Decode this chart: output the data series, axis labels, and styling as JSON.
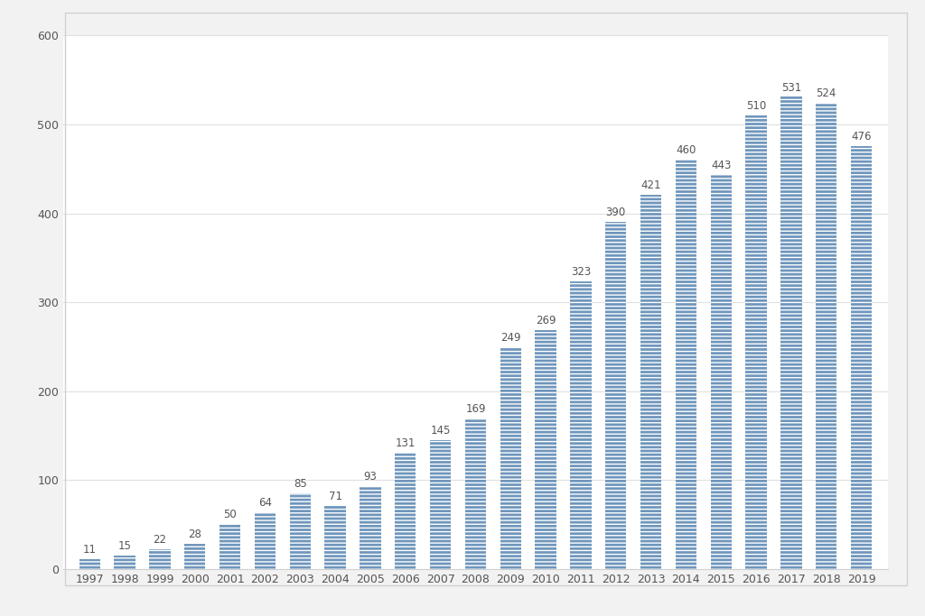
{
  "categories": [
    "1997",
    "1998",
    "1999",
    "2000",
    "2001",
    "2002",
    "2003",
    "2004",
    "2005",
    "2006",
    "2007",
    "2008",
    "2009",
    "2010",
    "2011",
    "2012",
    "2013",
    "2014",
    "2015",
    "2016",
    "2017",
    "2018",
    "2019"
  ],
  "values": [
    11,
    15,
    22,
    28,
    50,
    64,
    85,
    71,
    93,
    131,
    145,
    169,
    249,
    269,
    323,
    390,
    421,
    460,
    443,
    510,
    531,
    524,
    476
  ],
  "bar_color": "#6f96bc",
  "bar_hatch": "----",
  "hatch_color": "#ffffff",
  "background_color": "#f2f2f2",
  "plot_bg_color": "#ffffff",
  "border_color": "#d0d0d0",
  "ylim": [
    0,
    600
  ],
  "yticks": [
    0,
    100,
    200,
    300,
    400,
    500,
    600
  ],
  "label_fontsize": 8.5,
  "tick_fontsize": 9,
  "label_color": "#555555",
  "grid_color": "#e0e0e0",
  "bar_width": 0.6
}
